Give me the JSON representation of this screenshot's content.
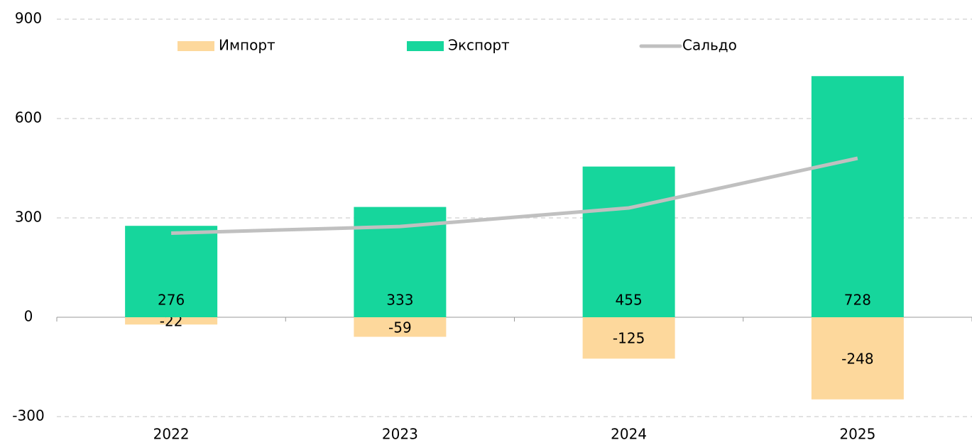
{
  "chart_data": {
    "type": "bar",
    "categories": [
      "2022",
      "2023",
      "2024",
      "2025"
    ],
    "series": [
      {
        "name": "Импорт",
        "color": "#fdd89c",
        "values": [
          -22,
          -59,
          -125,
          -248
        ]
      },
      {
        "name": "Экспорт",
        "color": "#16d69c",
        "values": [
          276,
          333,
          455,
          728
        ]
      },
      {
        "name": "Сальдо",
        "color": "#c0c0c0",
        "type": "line",
        "values": [
          254,
          274,
          330,
          480
        ]
      }
    ],
    "ylim": [
      -300,
      900
    ],
    "yticks": [
      -300,
      0,
      300,
      600,
      900
    ],
    "grid": true
  }
}
